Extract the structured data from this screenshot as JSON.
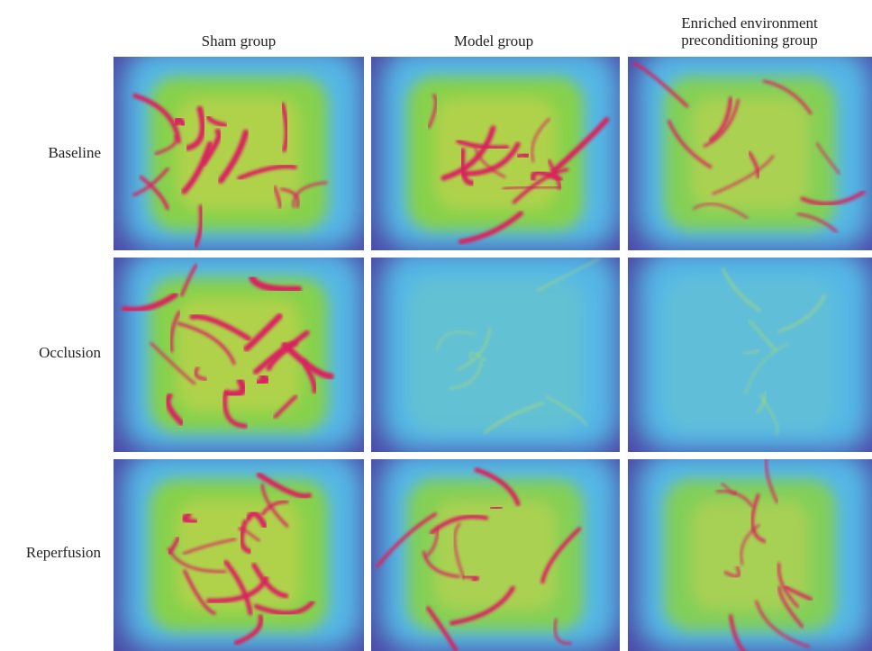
{
  "columns": [
    "Sham group",
    "Model group",
    "Enriched environment preconditioning group"
  ],
  "rows": [
    "Baseline",
    "Occlusion",
    "Reperfusion"
  ]
}
